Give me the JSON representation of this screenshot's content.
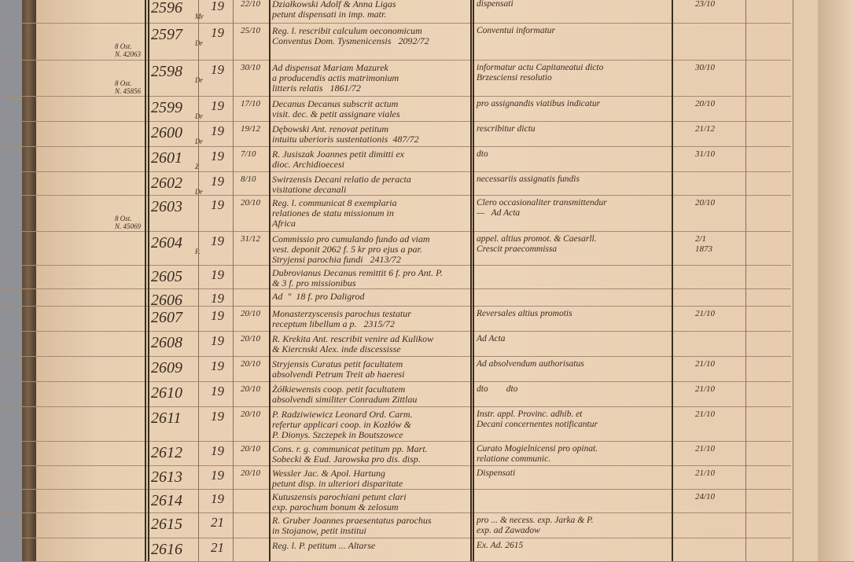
{
  "ledger": {
    "rows": [
      {
        "number": "2596",
        "mark": "Mr",
        "note": "",
        "day": "19",
        "date": "22/10",
        "content": "Działkowski Adolf & Anna Ligas\npetunt dispensati in imp. matr.",
        "remark": "dispensati",
        "resolution": "23/10"
      },
      {
        "number": "2597",
        "mark": "Dr",
        "note": "8 Ost.\nN. 42063",
        "day": "19",
        "date": "25/10",
        "content": "Reg. l. rescribit calculum oeconomicum\nConventus Dom. Tysmenicensis   2092/72",
        "remark": "Conventui informatur",
        "resolution": ""
      },
      {
        "number": "2598",
        "mark": "Dr",
        "note": "8 Ost.\nN. 45856",
        "day": "19",
        "date": "30/10",
        "content": "Ad dispensat Mariam Mazurek\na producendis actis matrimonium\nlitteris relatis   1861/72",
        "remark": "informatur actu Capitaneatui dicto\nBrzesciensi resolutio",
        "resolution": "30/10"
      },
      {
        "number": "2599",
        "mark": "Dr",
        "note": "",
        "day": "19",
        "date": "17/10",
        "content": "Decanus Decanus subscrit actum\nvisit. dec. & petit assignare viales",
        "remark": "pro assignandis viatibus indicatur",
        "resolution": "20/10"
      },
      {
        "number": "2600",
        "mark": "Dr",
        "note": "",
        "day": "19",
        "date": "19/12",
        "content": "Dębowski Ant. renovat petitum\nintuitu uberioris sustentationis  487/72",
        "remark": "rescribitur dictu",
        "resolution": "21/12"
      },
      {
        "number": "2601",
        "mark": "Z",
        "note": "",
        "day": "19",
        "date": "7/10",
        "content": "R. Jusiszak Joannes petit dimitti ex\ndioc. Archidioecesi",
        "remark": "dto",
        "resolution": "31/10"
      },
      {
        "number": "2602",
        "mark": "Dr",
        "note": "",
        "day": "19",
        "date": "8/10",
        "content": "Swirzensis Decani relatio de peracta\nvisitatione decanali",
        "remark": "necessariis assignatis fundis",
        "resolution": ""
      },
      {
        "number": "2603",
        "mark": "",
        "note": "8 Ost.\nN. 45069",
        "day": "19",
        "date": "20/10",
        "content": "Reg. l. communicat 8 exemplaria\nrelationes de statu missionum in\nAfrica",
        "remark": "Clero occasionaliter transmittendur\n—   Ad Acta",
        "resolution": "20/10"
      },
      {
        "number": "2604",
        "mark": "P.",
        "note": "",
        "day": "19",
        "date": "31/12",
        "content": "Commissio pro cumulando fundo ad viam\nvest. deponit 2062 f. 5 kr pro ejus a par.\nStryjensi parochia fundi   2413/72",
        "remark": "appel. altius promot. & Caesarll.\nCrescit praecommissa",
        "resolution": "2/1\n1873"
      },
      {
        "number": "2605",
        "mark": "",
        "note": "",
        "day": "19",
        "date": "",
        "content": "Dubrovianus Decanus remittit 6 f. pro Ant. P.\n& 3 f. pro missionibus",
        "remark": "",
        "resolution": ""
      },
      {
        "number": "2606",
        "mark": "",
        "note": "",
        "day": "19",
        "date": "",
        "content": "Ad  \"  18 f. pro Daligrod",
        "remark": "",
        "resolution": ""
      },
      {
        "number": "2607",
        "mark": "",
        "note": "",
        "day": "19",
        "date": "20/10",
        "content": "Monasterzyscensis parochus testatur\nreceptum libellum a p.   2315/72",
        "remark": "Reversales altius promotis",
        "resolution": "21/10"
      },
      {
        "number": "2608",
        "mark": "",
        "note": "",
        "day": "19",
        "date": "20/10",
        "content": "R. Krekita Ant. rescribit venire ad Kulikow\n& Kiercnski Alex. inde discessisse",
        "remark": "Ad Acta",
        "resolution": ""
      },
      {
        "number": "2609",
        "mark": "",
        "note": "",
        "day": "19",
        "date": "20/10",
        "content": "Stryjensis Curatus petit facultatem\nabsolvendi Petrum Treit ab haeresi",
        "remark": "Ad absolvendum authorisatus",
        "resolution": "21/10"
      },
      {
        "number": "2610",
        "mark": "",
        "note": "",
        "day": "19",
        "date": "20/10",
        "content": "Żółkiewensis coop. petit facultatem\nabsolvendi similiter Conradum Zittlau",
        "remark": "dto        dto",
        "resolution": "21/10"
      },
      {
        "number": "2611",
        "mark": "",
        "note": "",
        "day": "19",
        "date": "20/10",
        "content": "P. Radziwiewicz Leonard Ord. Carm.\nrefertur applicari coop. in Kozłów &\nP. Dionys. Szczepek in Boutszowce",
        "remark": "Instr. appl. Provinc. adhib. et\nDecani concernentes notificantur",
        "resolution": "21/10"
      },
      {
        "number": "2612",
        "mark": "",
        "note": "",
        "day": "19",
        "date": "20/10",
        "content": "Cons. r. g. communicat petitum pp. Mart.\nSobecki & Eud. Jarowska pro dis. disp.",
        "remark": "Curato Mogielnicensi pro opinat.\nrelatione communic.",
        "resolution": "21/10"
      },
      {
        "number": "2613",
        "mark": "",
        "note": "",
        "day": "19",
        "date": "20/10",
        "content": "Wessler Jac. & Apol. Hartung\npetunt disp. in ulteriori disparitate",
        "remark": "Dispensati",
        "resolution": "21/10"
      },
      {
        "number": "2614",
        "mark": "",
        "note": "",
        "day": "19",
        "date": "",
        "content": "Kutuszensis parochiani petunt clari\nexp. parochum bonum & zelosum",
        "remark": "",
        "resolution": "24/10"
      },
      {
        "number": "2615",
        "mark": "",
        "note": "",
        "day": "21",
        "date": "",
        "content": "R. Gruber Joannes praesentatus parochus\nin Stojanow, petit institui",
        "remark": "pro ... & necess. exp. Jarka & P.\nexp. ad Zawadow",
        "resolution": ""
      },
      {
        "number": "2616",
        "mark": "",
        "note": "",
        "day": "21",
        "date": "",
        "content": "Reg. l. P. petitum ... Altarse",
        "remark": "Ex. Ad. 2615",
        "resolution": ""
      }
    ]
  }
}
